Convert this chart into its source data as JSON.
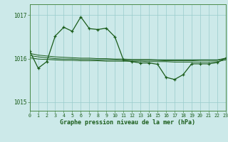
{
  "background_color": "#cce9e9",
  "grid_color": "#99cccc",
  "line_color": "#1a5c1a",
  "title": "Graphe pression niveau de la mer (hPa)",
  "xlim": [
    0,
    23
  ],
  "ylim": [
    1014.8,
    1017.25
  ],
  "yticks": [
    1015,
    1016,
    1017
  ],
  "xticks": [
    0,
    1,
    2,
    3,
    4,
    5,
    6,
    7,
    8,
    9,
    10,
    11,
    12,
    13,
    14,
    15,
    16,
    17,
    18,
    19,
    20,
    21,
    22,
    23
  ],
  "flat1": [
    1016.12,
    1016.08,
    1016.06,
    1016.04,
    1016.03,
    1016.02,
    1016.01,
    1016.01,
    1016.0,
    1016.0,
    1015.99,
    1015.99,
    1015.98,
    1015.98,
    1015.98,
    1015.97,
    1015.97,
    1015.97,
    1015.97,
    1015.97,
    1015.97,
    1015.97,
    1015.97,
    1016.01
  ],
  "flat2": [
    1016.07,
    1016.04,
    1016.02,
    1016.0,
    1015.99,
    1015.99,
    1015.98,
    1015.98,
    1015.97,
    1015.97,
    1015.97,
    1015.96,
    1015.96,
    1015.96,
    1015.96,
    1015.96,
    1015.95,
    1015.95,
    1015.95,
    1015.95,
    1015.96,
    1015.96,
    1015.96,
    1016.0
  ],
  "flat3": [
    1016.02,
    1015.99,
    1015.98,
    1015.97,
    1015.96,
    1015.96,
    1015.95,
    1015.95,
    1015.95,
    1015.94,
    1015.94,
    1015.94,
    1015.94,
    1015.94,
    1015.93,
    1015.93,
    1015.93,
    1015.92,
    1015.92,
    1015.92,
    1015.92,
    1015.92,
    1015.93,
    1015.97
  ],
  "main_y": [
    1016.18,
    1015.78,
    1015.93,
    1016.52,
    1016.72,
    1016.63,
    1016.96,
    1016.69,
    1016.67,
    1016.7,
    1016.5,
    1015.97,
    1015.93,
    1015.9,
    1015.9,
    1015.87,
    1015.57,
    1015.52,
    1015.63,
    1015.88,
    1015.88,
    1015.88,
    1015.91,
    1016.01
  ]
}
